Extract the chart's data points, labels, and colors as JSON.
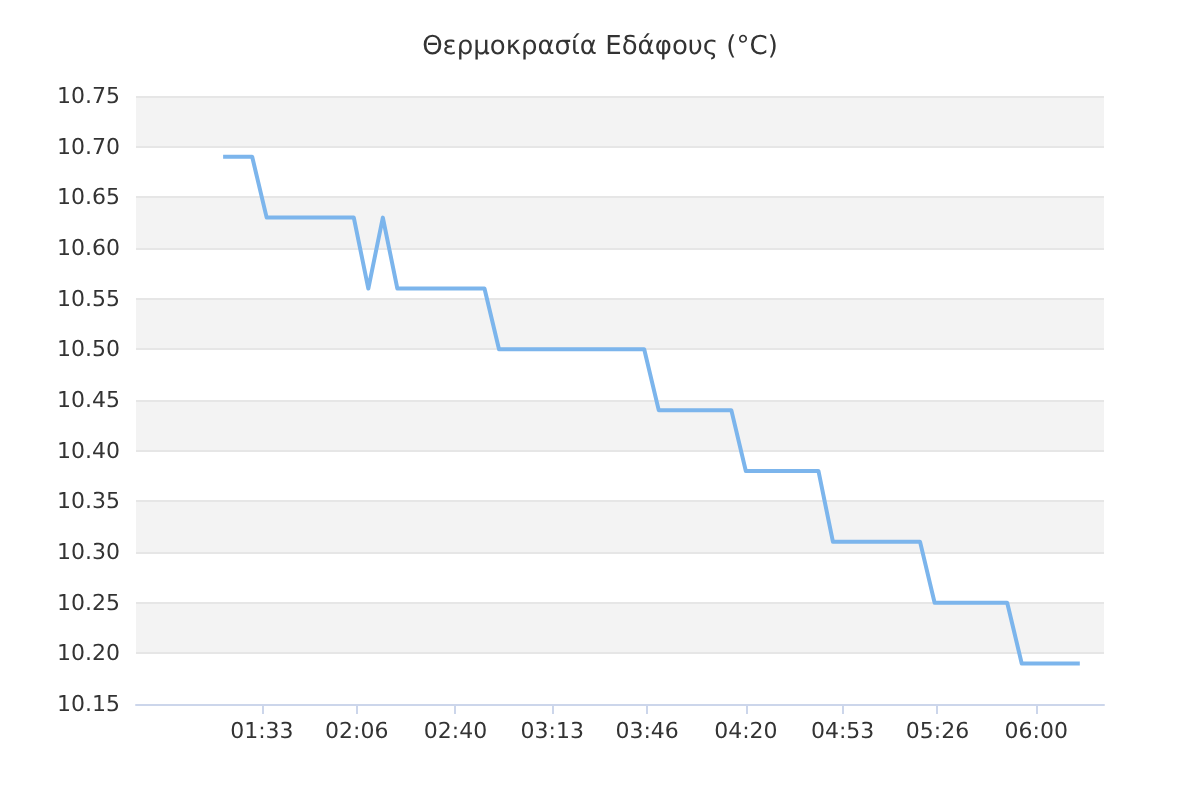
{
  "chart_data": {
    "type": "line",
    "title": "Θερμοκρασία Εδάφους (°C)",
    "x": [
      1.3333,
      1.5,
      1.5833,
      2.0833,
      2.1667,
      2.25,
      2.3333,
      2.8333,
      2.9167,
      3.75,
      3.8333,
      4.25,
      4.3333,
      4.75,
      4.8333,
      5.3333,
      5.4167,
      5.8333,
      5.9167,
      6.25
    ],
    "series": [
      {
        "color": "#7cb5ec",
        "values": [
          10.69,
          10.69,
          10.63,
          10.63,
          10.56,
          10.63,
          10.56,
          10.56,
          10.5,
          10.5,
          10.44,
          10.44,
          10.38,
          10.38,
          10.31,
          10.31,
          10.25,
          10.25,
          10.19,
          10.19
        ]
      }
    ],
    "xlim": [
      0.8333,
      6.3889
    ],
    "xticks": [
      {
        "value": 1.5556,
        "label": "01:33"
      },
      {
        "value": 2.1,
        "label": "02:06"
      },
      {
        "value": 2.6667,
        "label": "02:40"
      },
      {
        "value": 3.2222,
        "label": "03:13"
      },
      {
        "value": 3.7667,
        "label": "03:46"
      },
      {
        "value": 4.3333,
        "label": "04:20"
      },
      {
        "value": 4.8889,
        "label": "04:53"
      },
      {
        "value": 5.4333,
        "label": "05:26"
      },
      {
        "value": 6,
        "label": "06:00"
      }
    ],
    "ylim": [
      10.15,
      10.75
    ],
    "yticks": [
      {
        "value": 10.15,
        "label": "10.15"
      },
      {
        "value": 10.2,
        "label": "10.20"
      },
      {
        "value": 10.25,
        "label": "10.25"
      },
      {
        "value": 10.3,
        "label": "10.30"
      },
      {
        "value": 10.35,
        "label": "10.35"
      },
      {
        "value": 10.4,
        "label": "10.40"
      },
      {
        "value": 10.45,
        "label": "10.45"
      },
      {
        "value": 10.5,
        "label": "10.50"
      },
      {
        "value": 10.55,
        "label": "10.55"
      },
      {
        "value": 10.6,
        "label": "10.60"
      },
      {
        "value": 10.65,
        "label": "10.65"
      },
      {
        "value": 10.7,
        "label": "10.70"
      },
      {
        "value": 10.75,
        "label": "10.75"
      }
    ],
    "grid": "y",
    "marker": "none",
    "line_style": "solid"
  }
}
